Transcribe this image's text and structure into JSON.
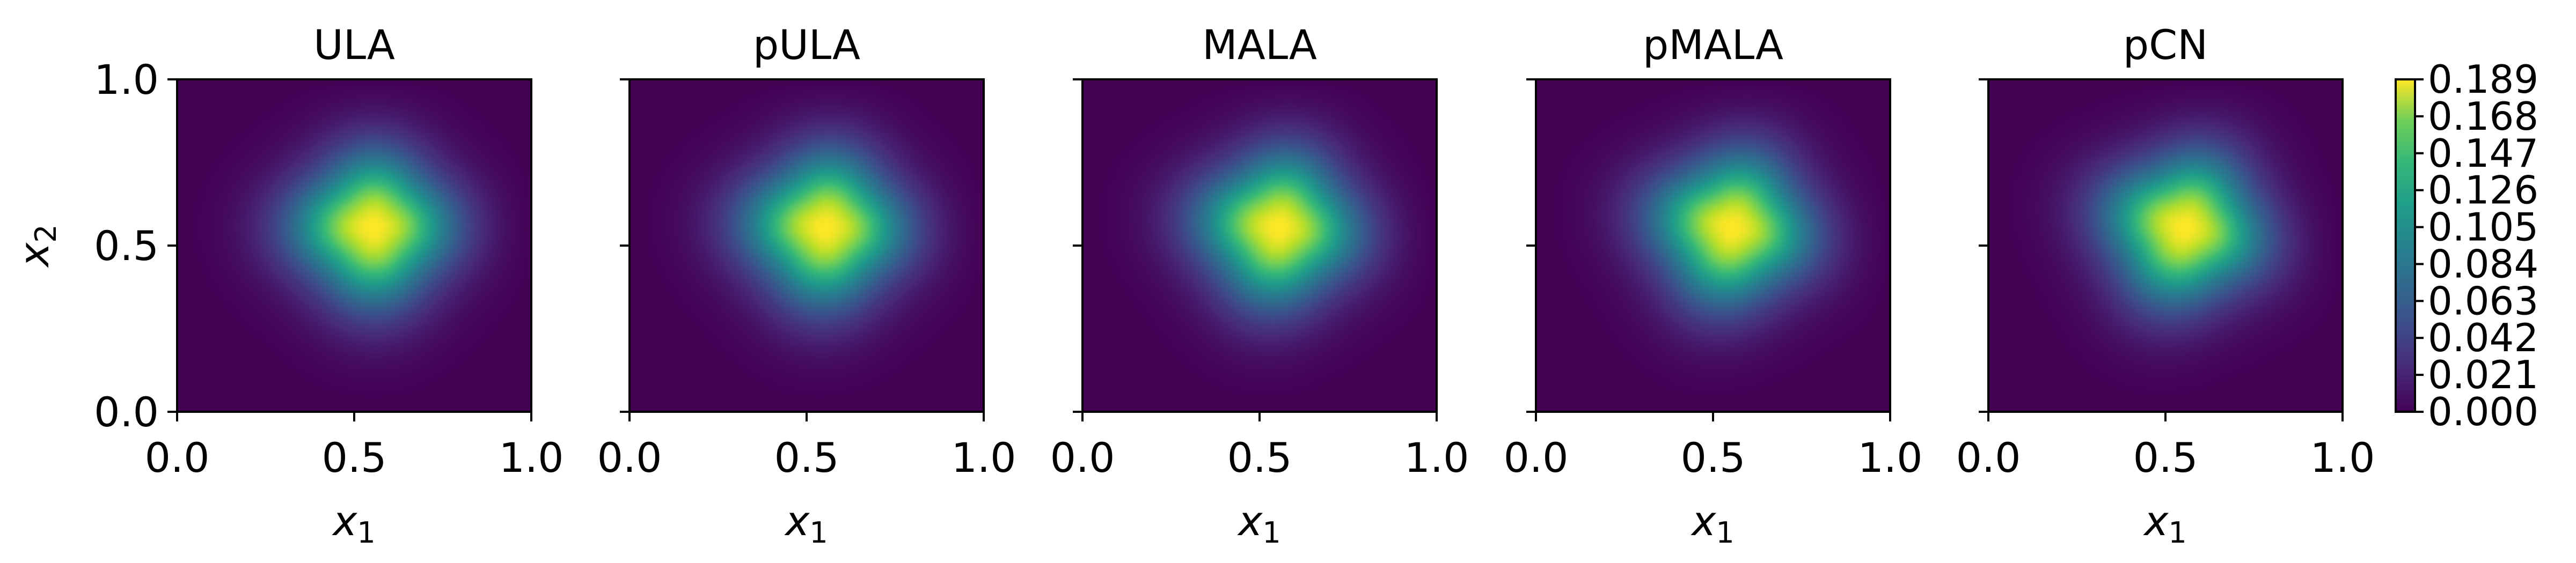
{
  "chart_data": {
    "type": "heatmap",
    "colormap": "viridis",
    "x_label": "x",
    "x_label_subscript": "1",
    "y_label": "x",
    "y_label_subscript": "2",
    "xlim": [
      0.0,
      1.0
    ],
    "ylim": [
      0.0,
      1.0
    ],
    "x_ticks": [
      "0.0",
      "0.5",
      "1.0"
    ],
    "y_ticks": [
      "0.0",
      "0.5",
      "1.0"
    ],
    "panels": [
      {
        "title": "ULA",
        "peak": [
          0.56,
          0.56
        ]
      },
      {
        "title": "pULA",
        "peak": [
          0.56,
          0.56
        ]
      },
      {
        "title": "MALA",
        "peak": [
          0.56,
          0.56
        ]
      },
      {
        "title": "pMALA",
        "peak": [
          0.56,
          0.56
        ]
      },
      {
        "title": "pCN",
        "peak": [
          0.56,
          0.56
        ]
      }
    ],
    "colorbar": {
      "min": 0.0,
      "max": 0.189,
      "ticks": [
        "0.189",
        "0.168",
        "0.147",
        "0.126",
        "0.105",
        "0.084",
        "0.063",
        "0.042",
        "0.021",
        "0.000"
      ]
    },
    "colors": {
      "viridis_dark": "#440154",
      "viridis_mid": "#21918c",
      "viridis_bright": "#fde725"
    }
  }
}
